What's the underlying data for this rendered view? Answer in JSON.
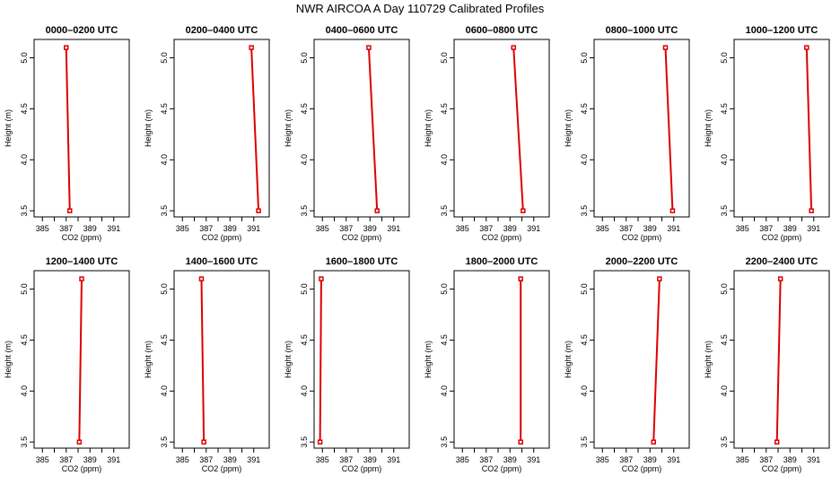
{
  "figure": {
    "title": "NWR AIRCOA A  Day 110729  Calibrated Profiles"
  },
  "axes": {
    "xlabel": "CO2 (ppm)",
    "ylabel": "Height (m)",
    "xlim": [
      384.3,
      392.3
    ],
    "ylim": [
      3.44,
      5.18
    ],
    "xticks": [
      385,
      386,
      387,
      388,
      389,
      390,
      391
    ],
    "xtick_labels": [
      "385",
      "387",
      "389",
      "391"
    ],
    "labeled_xticks": [
      385,
      387,
      389,
      391
    ],
    "yticks": [
      3.5,
      4.0,
      4.5,
      5.0
    ],
    "ytick_labels": [
      "3.5",
      "4.0",
      "4.5",
      "5.0"
    ]
  },
  "colors": {
    "series": "#dd0000",
    "axis": "#000000"
  },
  "chart_data": [
    {
      "type": "line",
      "title": "0000–0200 UTC",
      "x": [
        387.0,
        387.3
      ],
      "y": [
        5.1,
        3.5
      ]
    },
    {
      "type": "line",
      "title": "0200–0400 UTC",
      "x": [
        390.8,
        391.4
      ],
      "y": [
        5.1,
        3.5
      ]
    },
    {
      "type": "line",
      "title": "0400–0600 UTC",
      "x": [
        388.9,
        389.6
      ],
      "y": [
        5.1,
        3.5
      ]
    },
    {
      "type": "line",
      "title": "0600–0800 UTC",
      "x": [
        389.3,
        390.1
      ],
      "y": [
        5.1,
        3.5
      ]
    },
    {
      "type": "line",
      "title": "0800–1000 UTC",
      "x": [
        390.3,
        390.9
      ],
      "y": [
        5.1,
        3.5
      ]
    },
    {
      "type": "line",
      "title": "1000–1200 UTC",
      "x": [
        390.4,
        390.8
      ],
      "y": [
        5.1,
        3.5
      ]
    },
    {
      "type": "line",
      "title": "1200–1400 UTC",
      "x": [
        388.3,
        388.1
      ],
      "y": [
        5.1,
        3.5
      ]
    },
    {
      "type": "line",
      "title": "1400–1600 UTC",
      "x": [
        386.6,
        386.8
      ],
      "y": [
        5.1,
        3.5
      ]
    },
    {
      "type": "line",
      "title": "1600–1800 UTC",
      "x": [
        384.9,
        384.8
      ],
      "y": [
        5.1,
        3.5
      ]
    },
    {
      "type": "line",
      "title": "1800–2000 UTC",
      "x": [
        389.9,
        389.9
      ],
      "y": [
        5.1,
        3.5
      ]
    },
    {
      "type": "line",
      "title": "2000–2200 UTC",
      "x": [
        389.8,
        389.3
      ],
      "y": [
        5.1,
        3.5
      ]
    },
    {
      "type": "line",
      "title": "2200–2400 UTC",
      "x": [
        388.2,
        387.9
      ],
      "y": [
        5.1,
        3.5
      ]
    }
  ]
}
